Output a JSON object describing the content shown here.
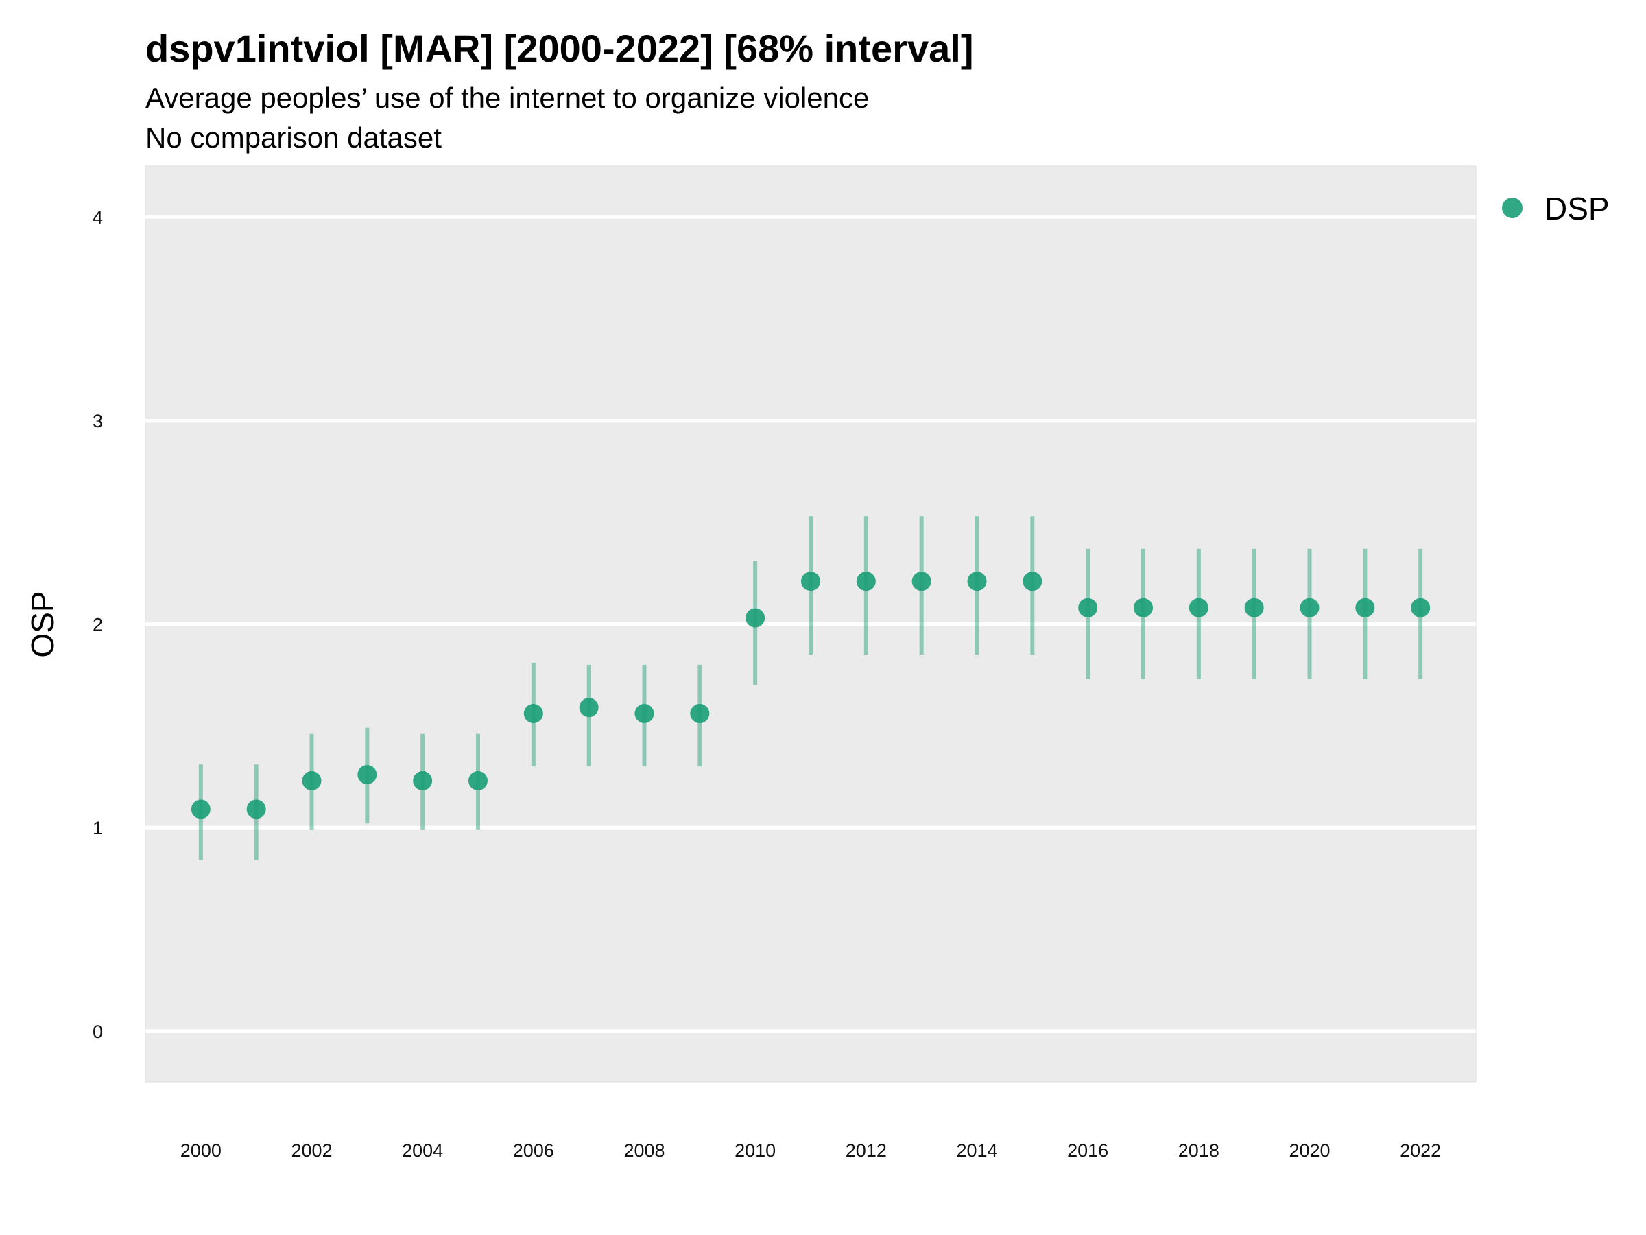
{
  "chart_data": {
    "type": "scatter",
    "title": "dspv1intviol [MAR] [2000-2022] [68% interval]",
    "subtitle": [
      "Average peoples’ use of the internet to organize violence",
      "No comparison dataset"
    ],
    "xlabel": "",
    "ylabel": "OSP",
    "xlim": [
      1999,
      2023
    ],
    "ylim": [
      -0.25,
      4.25
    ],
    "grid": true,
    "x_ticks": [
      "2000",
      "2002",
      "2004",
      "2006",
      "2008",
      "2010",
      "2012",
      "2014",
      "2016",
      "2018",
      "2020",
      "2022"
    ],
    "y_ticks": [
      "0",
      "1",
      "2",
      "3",
      "4"
    ],
    "legend": {
      "position": "right",
      "entries": [
        "DSP"
      ]
    },
    "series": [
      {
        "name": "DSP",
        "color": "#1b9e77",
        "x": [
          2000,
          2001,
          2002,
          2003,
          2004,
          2005,
          2006,
          2007,
          2008,
          2009,
          2010,
          2011,
          2012,
          2013,
          2014,
          2015,
          2016,
          2017,
          2018,
          2019,
          2020,
          2021,
          2022
        ],
        "y": [
          1.09,
          1.09,
          1.23,
          1.26,
          1.23,
          1.23,
          1.56,
          1.59,
          1.56,
          1.56,
          2.03,
          2.21,
          2.21,
          2.21,
          2.21,
          2.21,
          2.08,
          2.08,
          2.08,
          2.08,
          2.08,
          2.08,
          2.08
        ],
        "lower": [
          0.84,
          0.84,
          0.99,
          1.02,
          0.99,
          0.99,
          1.3,
          1.3,
          1.3,
          1.3,
          1.7,
          1.85,
          1.85,
          1.85,
          1.85,
          1.85,
          1.73,
          1.73,
          1.73,
          1.73,
          1.73,
          1.73,
          1.73
        ],
        "upper": [
          1.31,
          1.31,
          1.46,
          1.49,
          1.46,
          1.46,
          1.81,
          1.8,
          1.8,
          1.8,
          2.31,
          2.53,
          2.53,
          2.53,
          2.53,
          2.53,
          2.37,
          2.37,
          2.37,
          2.37,
          2.37,
          2.37,
          2.37
        ]
      }
    ]
  }
}
